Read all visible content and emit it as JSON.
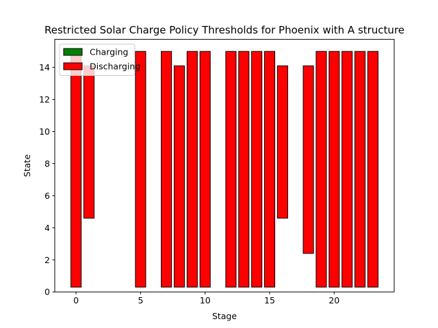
{
  "chart_data": {
    "type": "bar",
    "title": "Restricted Solar Charge Policy Thresholds for Phoenix with A structure",
    "xlabel": "Stage",
    "ylabel": "State",
    "xlim": [
      -1.65,
      24.65
    ],
    "ylim": [
      0,
      15.75
    ],
    "xticks": [
      0,
      5,
      10,
      15,
      20
    ],
    "yticks": [
      0,
      2,
      4,
      6,
      8,
      10,
      12,
      14
    ],
    "grid": false,
    "legend_position": "top-left",
    "series": [
      {
        "name": "Charging",
        "color": "#008000",
        "bars": [
          {
            "x": 0,
            "low": 0,
            "high": 0
          },
          {
            "x": 1,
            "low": 0,
            "high": 0
          },
          {
            "x": 5,
            "low": 0,
            "high": 0
          },
          {
            "x": 7,
            "low": 0,
            "high": 0
          },
          {
            "x": 8,
            "low": 0,
            "high": 0
          },
          {
            "x": 9,
            "low": 0,
            "high": 0
          },
          {
            "x": 10,
            "low": 0,
            "high": 0
          },
          {
            "x": 12,
            "low": 0,
            "high": 0
          },
          {
            "x": 13,
            "low": 0,
            "high": 0
          },
          {
            "x": 14,
            "low": 0,
            "high": 0
          },
          {
            "x": 15,
            "low": 0,
            "high": 0
          },
          {
            "x": 16,
            "low": 0,
            "high": 0
          },
          {
            "x": 18,
            "low": 0,
            "high": 0
          },
          {
            "x": 19,
            "low": 0,
            "high": 0
          },
          {
            "x": 20,
            "low": 0,
            "high": 0
          },
          {
            "x": 21,
            "low": 0,
            "high": 0
          },
          {
            "x": 22,
            "low": 0,
            "high": 0
          },
          {
            "x": 23,
            "low": 0,
            "high": 0
          }
        ]
      },
      {
        "name": "Discharging",
        "color": "#ff0000",
        "bars": [
          {
            "x": 0,
            "low": 0.3,
            "high": 15.0
          },
          {
            "x": 1,
            "low": 4.6,
            "high": 14.1
          },
          {
            "x": 5,
            "low": 0.3,
            "high": 15.0
          },
          {
            "x": 7,
            "low": 0.3,
            "high": 15.0
          },
          {
            "x": 8,
            "low": 0.3,
            "high": 14.1
          },
          {
            "x": 9,
            "low": 0.3,
            "high": 15.0
          },
          {
            "x": 10,
            "low": 0.3,
            "high": 15.0
          },
          {
            "x": 12,
            "low": 0.3,
            "high": 15.0
          },
          {
            "x": 13,
            "low": 0.3,
            "high": 15.0
          },
          {
            "x": 14,
            "low": 0.3,
            "high": 15.0
          },
          {
            "x": 15,
            "low": 0.3,
            "high": 15.0
          },
          {
            "x": 16,
            "low": 4.6,
            "high": 14.1
          },
          {
            "x": 18,
            "low": 2.4,
            "high": 14.1
          },
          {
            "x": 19,
            "low": 0.3,
            "high": 15.0
          },
          {
            "x": 20,
            "low": 0.3,
            "high": 15.0
          },
          {
            "x": 21,
            "low": 0.3,
            "high": 15.0
          },
          {
            "x": 22,
            "low": 0.3,
            "high": 15.0
          },
          {
            "x": 23,
            "low": 0.3,
            "high": 15.0
          }
        ]
      }
    ]
  }
}
